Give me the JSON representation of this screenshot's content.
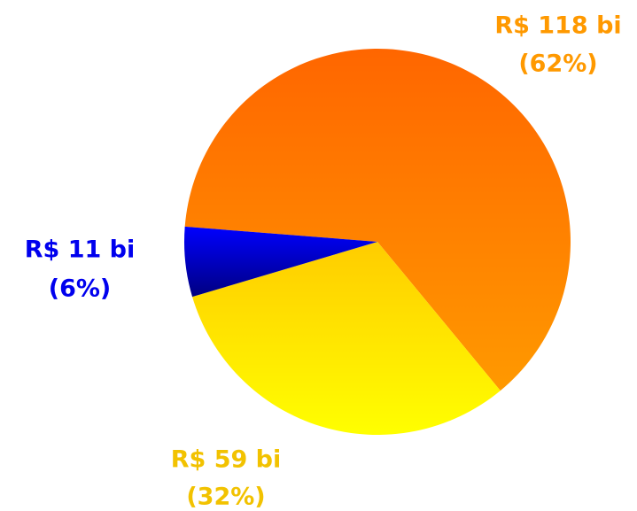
{
  "chart_data": {
    "type": "pie",
    "values": [
      118,
      59,
      11
    ],
    "value_labels": [
      "R$ 118 bi",
      "R$ 59 bi",
      "R$ 11 bi"
    ],
    "percent_labels": [
      "(62%)",
      "(32%)",
      "(6%)"
    ],
    "colors": [
      [
        "#ff6600",
        "#ff9900"
      ],
      [
        "#ffcc00",
        "#ffff00"
      ],
      [
        "#0000ff",
        "#000080"
      ]
    ],
    "label_colors": [
      "#ff9900",
      "#f2c200",
      "#0000ee"
    ]
  }
}
